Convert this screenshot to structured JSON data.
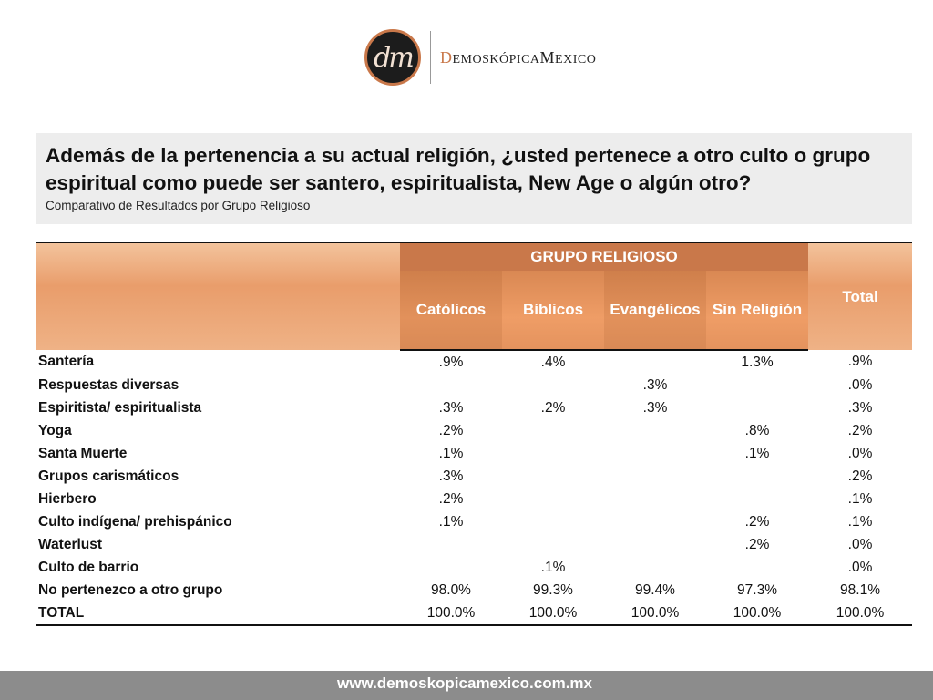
{
  "logo": {
    "monogram": "dm",
    "brand_first": "D",
    "brand_mid": "EMOSKÓPICA",
    "brand_m": "M",
    "brand_last": "EXICO"
  },
  "title": "Además de la pertenencia a su actual religión, ¿usted pertenece a otro culto o grupo espiritual como puede ser santero, espiritualista, New Age o algún otro?",
  "subtitle": "Comparativo de Resultados por Grupo Religioso",
  "colors": {
    "accent": "#c9784a",
    "header_light": "#efb286",
    "footer": "#8c8c8c",
    "title_bg": "#ededed"
  },
  "chart_data": {
    "type": "table",
    "group_header": "GRUPO RELIGIOSO",
    "columns": [
      "Católicos",
      "Bíblicos",
      "Evangélicos",
      "Sin Religión"
    ],
    "total_header": "Total",
    "rows": [
      {
        "label": "Santería",
        "values": [
          ".9%",
          ".4%",
          "",
          "1.3%"
        ],
        "total": ".9%"
      },
      {
        "label": "Respuestas diversas",
        "values": [
          "",
          "",
          ".3%",
          ""
        ],
        "total": ".0%"
      },
      {
        "label": "Espiritista/ espiritualista",
        "values": [
          ".3%",
          ".2%",
          ".3%",
          ""
        ],
        "total": ".3%"
      },
      {
        "label": "Yoga",
        "values": [
          ".2%",
          "",
          "",
          ".8%"
        ],
        "total": ".2%"
      },
      {
        "label": "Santa Muerte",
        "values": [
          ".1%",
          "",
          "",
          ".1%"
        ],
        "total": ".0%"
      },
      {
        "label": "Grupos carismáticos",
        "values": [
          ".3%",
          "",
          "",
          ""
        ],
        "total": ".2%"
      },
      {
        "label": "Hierbero",
        "values": [
          ".2%",
          "",
          "",
          ""
        ],
        "total": ".1%"
      },
      {
        "label": "Culto indígena/ prehispánico",
        "values": [
          ".1%",
          "",
          "",
          ".2%"
        ],
        "total": ".1%"
      },
      {
        "label": "Waterlust",
        "values": [
          "",
          "",
          "",
          ".2%"
        ],
        "total": ".0%"
      },
      {
        "label": "Culto de barrio",
        "values": [
          "",
          ".1%",
          "",
          ""
        ],
        "total": ".0%"
      },
      {
        "label": "No pertenezco a otro grupo",
        "values": [
          "98.0%",
          "99.3%",
          "99.4%",
          "97.3%"
        ],
        "total": "98.1%"
      },
      {
        "label": "TOTAL",
        "values": [
          "100.0%",
          "100.0%",
          "100.0%",
          "100.0%"
        ],
        "total": "100.0%"
      }
    ]
  },
  "footer": {
    "url": "www.demoskopicamexico.com.mx"
  }
}
